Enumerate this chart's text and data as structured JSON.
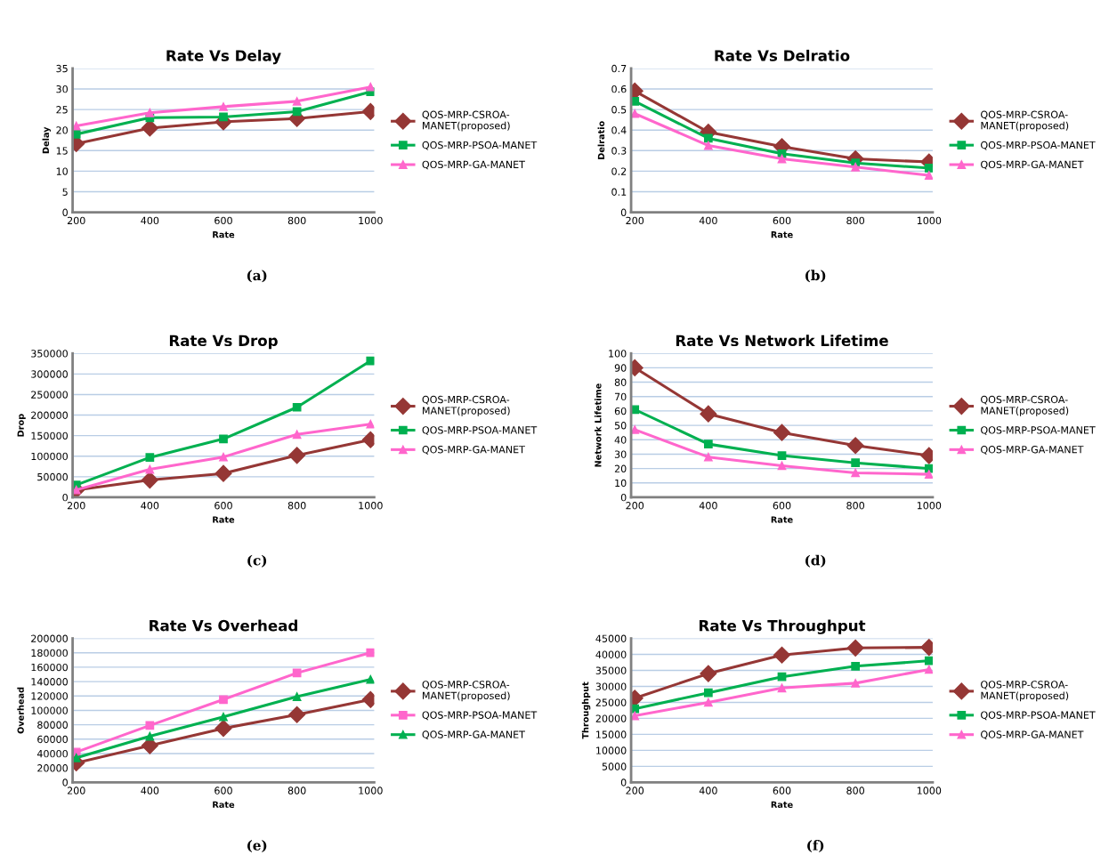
{
  "chart_data": [
    {
      "type": "line",
      "title": "Rate Vs Delay",
      "xlabel": "Rate",
      "ylabel": "Delay",
      "categories": [
        "200",
        "400",
        "600",
        "800",
        "1000"
      ],
      "ylim": [
        0,
        35
      ],
      "yticks": [
        0,
        5,
        10,
        15,
        20,
        25,
        30,
        35
      ],
      "grid": "y",
      "legend": "right",
      "annotations": [
        "(a)"
      ],
      "series": [
        {
          "name": "QOS-MRP-CSROA-MANET(proposed)",
          "color": "#953735",
          "marker": "diamond",
          "values": [
            16.7,
            20.5,
            22,
            22.8,
            24.5
          ]
        },
        {
          "name": "QOS-MRP-PSOA-MANET",
          "color": "#00b050",
          "marker": "square",
          "values": [
            19,
            23,
            23.2,
            24.5,
            29.3
          ]
        },
        {
          "name": "QOS-MRP-GA-MANET",
          "color": "#ff66cc",
          "marker": "triangle",
          "values": [
            21,
            24.2,
            25.7,
            27,
            30.5
          ]
        }
      ]
    },
    {
      "type": "line",
      "title": "Rate Vs Delratio",
      "xlabel": "Rate",
      "ylabel": "Delratio",
      "categories": [
        "200",
        "400",
        "600",
        "800",
        "1000"
      ],
      "ylim": [
        0,
        0.7
      ],
      "yticks": [
        0,
        0.1,
        0.2,
        0.3,
        0.4,
        0.5,
        0.6,
        0.7
      ],
      "grid": "y",
      "legend": "right",
      "annotations": [
        "(b)"
      ],
      "series": [
        {
          "name": "QOS-MRP-CSROA-MANET(proposed)",
          "color": "#953735",
          "marker": "diamond",
          "values": [
            0.59,
            0.39,
            0.32,
            0.26,
            0.245
          ]
        },
        {
          "name": "QOS-MRP-PSOA-MANET",
          "color": "#00b050",
          "marker": "square",
          "values": [
            0.54,
            0.36,
            0.285,
            0.24,
            0.215
          ]
        },
        {
          "name": "QOS-MRP-GA-MANET",
          "color": "#ff66cc",
          "marker": "triangle",
          "values": [
            0.48,
            0.325,
            0.26,
            0.22,
            0.18
          ]
        }
      ]
    },
    {
      "type": "line",
      "title": "Rate Vs Drop",
      "xlabel": "Rate",
      "ylabel": "Drop",
      "categories": [
        "200",
        "400",
        "600",
        "800",
        "1000"
      ],
      "ylim": [
        0,
        350000
      ],
      "yticks": [
        0,
        50000,
        100000,
        150000,
        200000,
        250000,
        300000,
        350000
      ],
      "grid": "y",
      "legend": "right",
      "annotations": [
        "(c)"
      ],
      "series": [
        {
          "name": "QOS-MRP-CSROA-MANET(proposed)",
          "color": "#953735",
          "marker": "diamond",
          "values": [
            18000,
            42000,
            58000,
            102000,
            140000
          ]
        },
        {
          "name": "QOS-MRP-PSOA-MANET",
          "color": "#00b050",
          "marker": "square",
          "values": [
            30000,
            97000,
            142000,
            219000,
            332000
          ]
        },
        {
          "name": "QOS-MRP-GA-MANET",
          "color": "#ff66cc",
          "marker": "triangle",
          "values": [
            18000,
            68000,
            98000,
            153000,
            178000
          ]
        }
      ]
    },
    {
      "type": "line",
      "title": "Rate Vs Network Lifetime",
      "xlabel": "Rate",
      "ylabel": "Network Lifetime",
      "categories": [
        "200",
        "400",
        "600",
        "800",
        "1000"
      ],
      "ylim": [
        0,
        100
      ],
      "yticks": [
        0,
        10,
        20,
        30,
        40,
        50,
        60,
        70,
        80,
        90,
        100
      ],
      "grid": "y",
      "legend": "right",
      "annotations": [
        "(d)"
      ],
      "series": [
        {
          "name": "QOS-MRP-CSROA-MANET(proposed)",
          "color": "#953735",
          "marker": "diamond",
          "values": [
            90,
            58,
            45,
            36,
            29
          ]
        },
        {
          "name": "QOS-MRP-PSOA-MANET",
          "color": "#00b050",
          "marker": "square",
          "values": [
            61,
            37,
            29,
            24,
            20
          ]
        },
        {
          "name": "QOS-MRP-GA-MANET",
          "color": "#ff66cc",
          "marker": "triangle",
          "values": [
            47,
            28,
            22,
            17,
            16
          ]
        }
      ]
    },
    {
      "type": "line",
      "title": "Rate Vs Overhead",
      "xlabel": "Rate",
      "ylabel": "Overhead",
      "categories": [
        "200",
        "400",
        "600",
        "800",
        "1000"
      ],
      "ylim": [
        0,
        200000
      ],
      "yticks": [
        0,
        20000,
        40000,
        60000,
        80000,
        100000,
        120000,
        140000,
        160000,
        180000,
        200000
      ],
      "grid": "y",
      "legend": "right",
      "annotations": [
        "(e)"
      ],
      "series": [
        {
          "name": "QOS-MRP-CSROA-MANET(proposed)",
          "color": "#953735",
          "marker": "diamond",
          "values": [
            27000,
            51000,
            75000,
            94000,
            115000
          ]
        },
        {
          "name": "QOS-MRP-PSOA-MANET",
          "color": "#ff66cc",
          "marker": "square",
          "values": [
            42000,
            79000,
            115000,
            152000,
            180000
          ]
        },
        {
          "name": "QOS-MRP-GA-MANET",
          "color": "#00b050",
          "marker": "triangle",
          "values": [
            34000,
            64000,
            91000,
            119000,
            143000
          ]
        }
      ]
    },
    {
      "type": "line",
      "title": "Rate Vs Throughput",
      "xlabel": "Rate",
      "ylabel": "Throughput",
      "categories": [
        "200",
        "400",
        "600",
        "800",
        "1000"
      ],
      "ylim": [
        0,
        45000
      ],
      "yticks": [
        0,
        5000,
        10000,
        15000,
        20000,
        25000,
        30000,
        35000,
        40000,
        45000
      ],
      "grid": "y",
      "legend": "right",
      "annotations": [
        "(f)"
      ],
      "series": [
        {
          "name": "QOS-MRP-CSROA-MANET(proposed)",
          "color": "#953735",
          "marker": "diamond",
          "values": [
            26300,
            34000,
            39800,
            42000,
            42200
          ]
        },
        {
          "name": "QOS-MRP-PSOA-MANET",
          "color": "#00b050",
          "marker": "square",
          "values": [
            23000,
            28000,
            33000,
            36300,
            38000
          ]
        },
        {
          "name": "QOS-MRP-GA-MANET",
          "color": "#ff66cc",
          "marker": "triangle",
          "values": [
            20800,
            25000,
            29500,
            31000,
            35300
          ]
        }
      ]
    }
  ]
}
